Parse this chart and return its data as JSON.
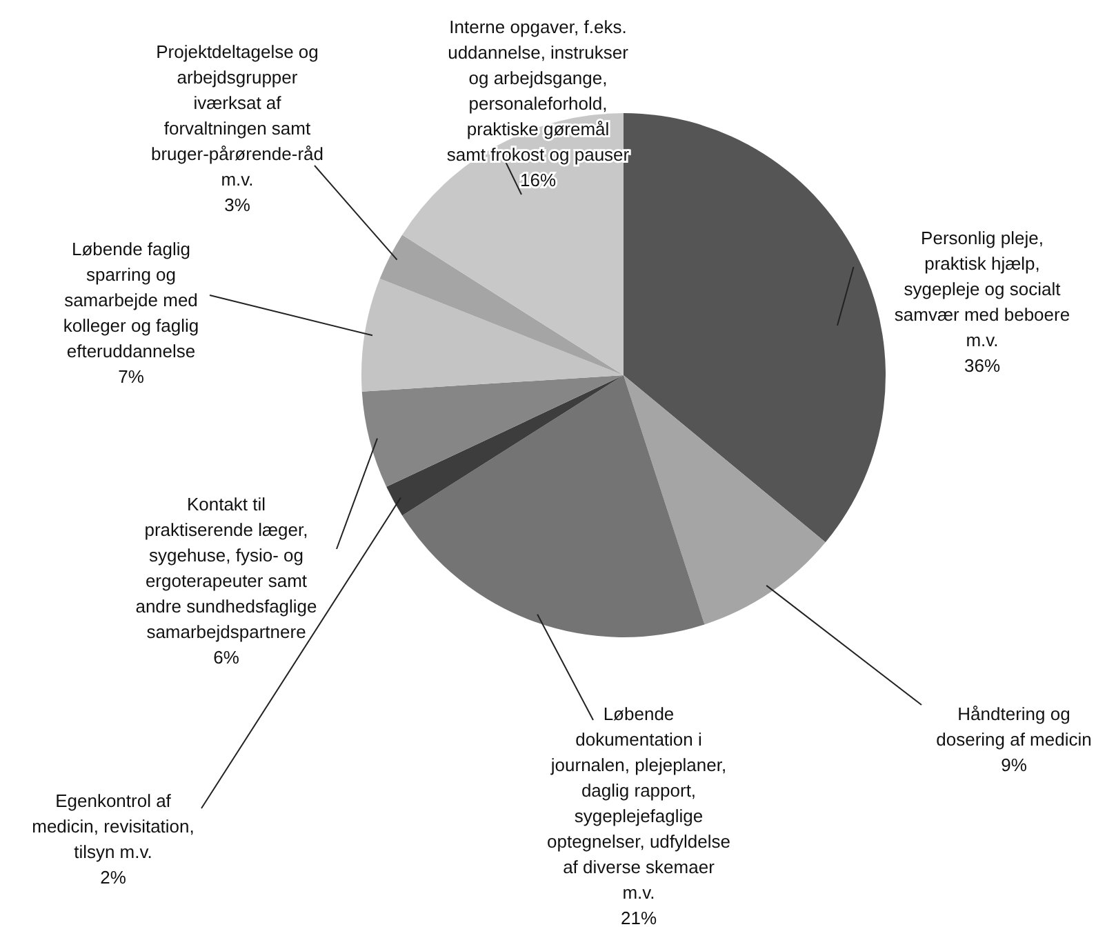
{
  "chart_data": {
    "type": "pie",
    "categories": [
      "Personlig pleje, praktisk hjælp, sygepleje og socialt samvær med beboere m.v.",
      "Håndtering og dosering af medicin",
      "Løbende dokumentation i journalen, plejeplaner, daglig rapport, sygeplejefaglige optegnelser, udfyldelse af diverse skemaer m.v.",
      "Egenkontrol af medicin, revisitation, tilsyn m.v.",
      "Kontakt til praktiserende læger, sygehuse, fysio- og ergoterapeuter samt andre sundhedsfaglige samarbejdspartnere",
      "Løbende faglig sparring og samarbejde med kolleger og faglig efteruddannelse",
      "Projektdeltagelse og arbejdsgrupper iværksat af forvaltningen samt bruger-pårørende-råd m.v.",
      "Interne opgaver, f.eks. uddannelse, instrukser og arbejdsgange, personaleforhold, praktiske gøremål samt frokost og pauser"
    ],
    "values": [
      36,
      9,
      21,
      2,
      6,
      7,
      3,
      16
    ],
    "value_labels": [
      "36%",
      "9%",
      "21%",
      "2%",
      "6%",
      "7%",
      "3%",
      "16%"
    ],
    "colors": [
      "#555555",
      "#a5a5a5",
      "#747474",
      "#3d3d3d",
      "#868686",
      "#c4c4c4",
      "#a5a5a5",
      "#c8c8c8"
    ]
  }
}
